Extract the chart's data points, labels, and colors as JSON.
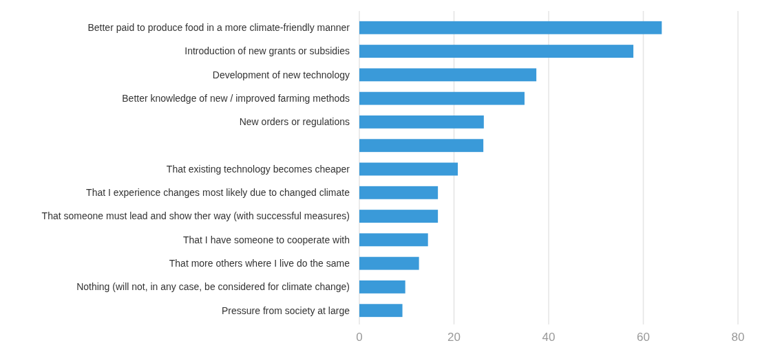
{
  "chart_data": {
    "type": "bar",
    "orientation": "horizontal",
    "categories": [
      "Better paid to produce food in a more climate-friendly manner",
      "Introduction of new grants or subsidies",
      "Development of new technology",
      "Better knowledge of new / improved farming methods",
      "New orders or regulations",
      null,
      "That existing technology becomes cheaper",
      "That I experience changes most likely due to changed climate",
      "That someone must lead and show ther way (with successful measures)",
      "That I have someone to cooperate with",
      "That more others where I live do the same",
      "Nothing (will not, in any case, be considered for climate change)",
      "Pressure from society at large"
    ],
    "values": [
      63.9,
      57.9,
      37.4,
      34.9,
      26.3,
      26.2,
      20.8,
      16.6,
      16.6,
      14.5,
      12.6,
      9.7,
      9.1
    ],
    "color": "#3a9ad9",
    "xlim": [
      0,
      80
    ],
    "xticks": [
      0,
      20,
      40,
      60,
      80
    ],
    "grid": "x"
  }
}
